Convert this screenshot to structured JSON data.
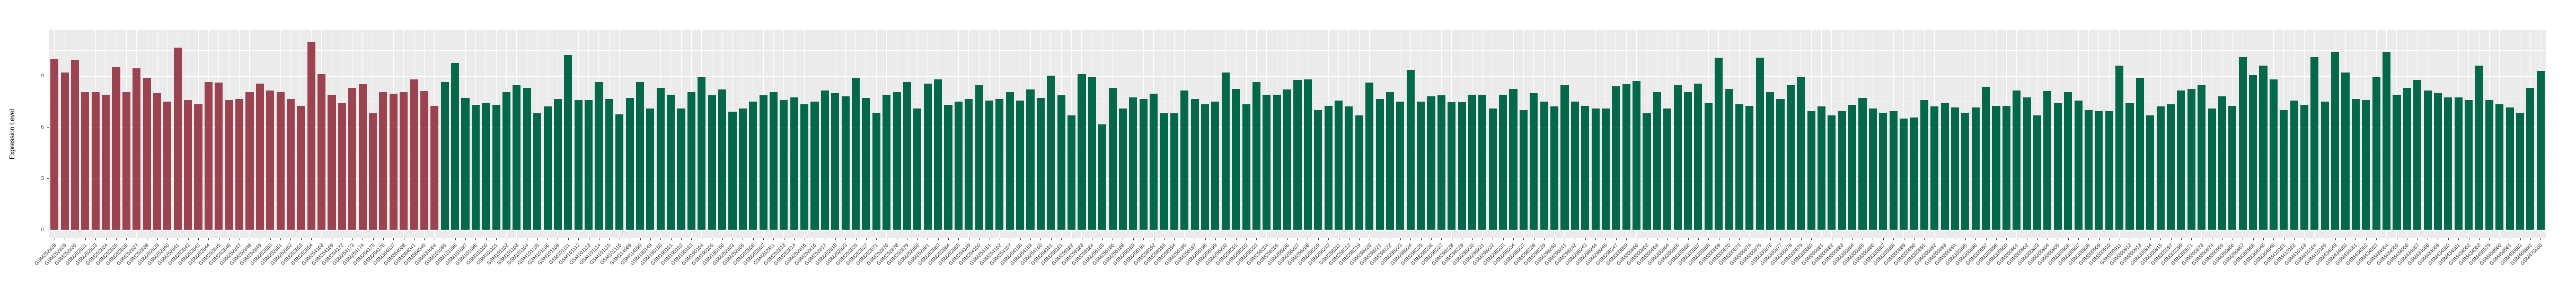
{
  "chart_data": {
    "type": "bar",
    "title": "",
    "xlabel": "",
    "ylabel": "Expression Level",
    "yticks": [
      0,
      3,
      6,
      9
    ],
    "ylim": [
      -0.49,
      11.7
    ],
    "grid": {
      "major": [
        0,
        3,
        6,
        9
      ],
      "minor": [
        1.5,
        4.5,
        7.5,
        10.5
      ],
      "vertical": "per-category"
    },
    "legend": "none",
    "panel_background": "#EBEBEB",
    "gridline_color": "#FFFFFF",
    "bar_groups": [
      {
        "name": "group-red",
        "color": "#9B4351",
        "start": 0,
        "end": 37
      },
      {
        "name": "group-green",
        "color": "#02684A",
        "start": 38,
        "end": 242
      }
    ],
    "categories": [
      "GSM252828",
      "GSM252829",
      "GSM252830",
      "GSM252831",
      "GSM252833",
      "GSM252834",
      "GSM252835",
      "GSM252836",
      "GSM252837",
      "GSM252838",
      "GSM252839",
      "GSM252840",
      "GSM252841",
      "GSM252842",
      "GSM252843",
      "GSM252844",
      "GSM252845",
      "GSM252846",
      "GSM252847",
      "GSM252848",
      "GSM252849",
      "GSM252850",
      "GSM252851",
      "GSM252852",
      "GSM252853",
      "GSM252854",
      "GSM254163",
      "GSM254169",
      "GSM254172",
      "GSM254173",
      "GSM254174",
      "GSM254175",
      "GSM254176",
      "GSM364037",
      "GSM364038",
      "GSM364041",
      "GSM364045",
      "GSM434064",
      "GSM101095",
      "GSM101096",
      "GSM101097",
      "GSM101098",
      "GSM101100",
      "GSM101101",
      "GSM101102",
      "GSM101103",
      "GSM101104",
      "GSM101105",
      "GSM101106",
      "GSM101109",
      "GSM101111",
      "GSM101112",
      "GSM101113",
      "GSM101114",
      "GSM101115",
      "GSM101116",
      "GSM114089",
      "GSM114090",
      "GSM190149",
      "GSM190150",
      "GSM190151",
      "GSM190152",
      "GSM190153",
      "GSM190154",
      "GSM190155",
      "GSM190156",
      "GSM252803",
      "GSM252805",
      "GSM252806",
      "GSM252807",
      "GSM252811",
      "GSM252813",
      "GSM252814",
      "GSM252815",
      "GSM252816",
      "GSM252817",
      "GSM252818",
      "GSM252823",
      "GSM252825",
      "GSM252827",
      "GSM252871",
      "GSM252876",
      "GSM252878",
      "GSM252879",
      "GSM252880",
      "GSM252881",
      "GSM252882",
      "GSM252884",
      "GSM252885",
      "GSM254149",
      "GSM254150",
      "GSM254151",
      "GSM254152",
      "GSM254157",
      "GSM254158",
      "GSM254159",
      "GSM254160",
      "GSM254161",
      "GSM256181",
      "GSM256182",
      "GSM256183",
      "GSM256184",
      "GSM256185",
      "GSM256186",
      "GSM256188",
      "GSM256189",
      "GSM256191",
      "GSM256192",
      "GSM256193",
      "GSM256194",
      "GSM256195",
      "GSM256197",
      "GSM256198",
      "GSM256199",
      "GSM256200",
      "GSM256201",
      "GSM256202",
      "GSM256203",
      "GSM256204",
      "GSM256205",
      "GSM256206",
      "GSM256207",
      "GSM256208",
      "GSM256209",
      "GSM256210",
      "GSM256211",
      "GSM256212",
      "GSM298219",
      "GSM298220",
      "GSM298221",
      "GSM298222",
      "GSM298223",
      "GSM298224",
      "GSM298225",
      "GSM298226",
      "GSM298227",
      "GSM298228",
      "GSM298229",
      "GSM298230",
      "GSM298231",
      "GSM298232",
      "GSM298233",
      "GSM298234",
      "GSM298237",
      "GSM298238",
      "GSM298239",
      "GSM298240",
      "GSM298241",
      "GSM298242",
      "GSM298243",
      "GSM298244",
      "GSM298245",
      "GSM298247",
      "GSM300859",
      "GSM300860",
      "GSM300862",
      "GSM300863",
      "GSM300864",
      "GSM300865",
      "GSM300866",
      "GSM300867",
      "GSM300868",
      "GSM300869",
      "GSM300870",
      "GSM300873",
      "GSM300874",
      "GSM300875",
      "GSM300876",
      "GSM300877",
      "GSM300878",
      "GSM300879",
      "GSM300880",
      "GSM300881",
      "GSM300882",
      "GSM300883",
      "GSM300884",
      "GSM300885",
      "GSM300886",
      "GSM300887",
      "GSM300888",
      "GSM300889",
      "GSM300890",
      "GSM300891",
      "GSM300892",
      "GSM300893",
      "GSM300894",
      "GSM300895",
      "GSM300896",
      "GSM300897",
      "GSM300898",
      "GSM300900",
      "GSM300901",
      "GSM300902",
      "GSM300903",
      "GSM300904",
      "GSM300905",
      "GSM300906",
      "GSM300907",
      "GSM300908",
      "GSM300909",
      "GSM300910",
      "GSM300911",
      "GSM300912",
      "GSM300913",
      "GSM300914",
      "GSM300915",
      "GSM302397",
      "GSM302399",
      "GSM350871",
      "GSM350873",
      "GSM350874",
      "GSM350955",
      "GSM350956",
      "GSM350957",
      "GSM350958",
      "GSM364046",
      "GSM364048",
      "GSM410161",
      "GSM410162",
      "GSM410163",
      "GSM410164",
      "GSM410165",
      "GSM434049",
      "GSM434050",
      "GSM434051",
      "GSM434052",
      "GSM434053",
      "GSM434054",
      "GSM434055",
      "GSM434056",
      "GSM434057",
      "GSM434058",
      "GSM434059",
      "GSM434060",
      "GSM434061",
      "GSM434062",
      "GSM434063",
      "GSM458579",
      "GSM458580",
      "GSM458581",
      "GSM458582",
      "GSM469991",
      "GSM470000"
    ],
    "values": [
      10.0,
      9.2,
      9.95,
      8.05,
      8.05,
      7.9,
      9.5,
      8.05,
      9.45,
      8.9,
      8.0,
      7.5,
      10.65,
      7.6,
      7.35,
      8.65,
      8.6,
      7.6,
      7.65,
      8.05,
      8.55,
      8.15,
      8.05,
      7.65,
      7.25,
      11.0,
      9.1,
      7.9,
      7.4,
      8.3,
      8.5,
      6.8,
      8.05,
      7.95,
      8.05,
      8.8,
      8.1,
      7.25,
      8.65,
      9.75,
      7.7,
      7.3,
      7.4,
      7.3,
      8.05,
      8.45,
      8.3,
      6.8,
      7.2,
      7.65,
      10.2,
      7.6,
      7.6,
      8.65,
      7.65,
      6.75,
      7.7,
      8.65,
      7.1,
      8.3,
      7.9,
      7.1,
      8.05,
      8.95,
      7.85,
      8.2,
      6.9,
      7.1,
      7.5,
      7.85,
      8.05,
      7.6,
      7.75,
      7.35,
      7.5,
      8.15,
      8.0,
      7.8,
      8.9,
      7.7,
      6.85,
      7.9,
      8.05,
      8.65,
      7.1,
      8.55,
      8.8,
      7.3,
      7.5,
      7.65,
      8.45,
      7.55,
      7.65,
      8.05,
      7.55,
      8.2,
      7.7,
      9.0,
      7.85,
      6.7,
      9.1,
      8.95,
      6.15,
      8.3,
      7.1,
      7.75,
      7.65,
      7.95,
      6.8,
      6.8,
      8.15,
      7.65,
      7.35,
      7.5,
      9.2,
      8.25,
      7.35,
      8.65,
      7.9,
      7.9,
      8.2,
      8.75,
      8.8,
      7.0,
      7.25,
      7.55,
      7.2,
      6.7,
      8.6,
      7.65,
      8.05,
      7.5,
      9.35,
      7.5,
      7.8,
      7.85,
      7.45,
      7.45,
      7.9,
      7.9,
      7.1,
      7.9,
      8.25,
      7.0,
      8.0,
      7.5,
      7.2,
      8.45,
      7.5,
      7.25,
      7.1,
      7.1,
      8.4,
      8.5,
      8.7,
      6.8,
      8.05,
      7.1,
      8.45,
      8.05,
      8.55,
      7.4,
      10.05,
      8.25,
      7.35,
      7.25,
      10.05,
      8.05,
      7.65,
      8.45,
      8.95,
      6.95,
      7.2,
      6.7,
      6.95,
      7.3,
      7.7,
      7.1,
      6.85,
      6.95,
      6.5,
      6.55,
      7.6,
      7.2,
      7.4,
      7.15,
      6.85,
      7.15,
      8.35,
      7.25,
      7.25,
      8.15,
      7.75,
      6.7,
      8.1,
      7.4,
      8.05,
      7.55,
      7.0,
      6.95,
      6.95,
      9.6,
      7.4,
      8.9,
      6.7,
      7.2,
      7.35,
      8.15,
      8.25,
      8.45,
      7.1,
      7.8,
      7.25,
      10.1,
      9.05,
      9.6,
      8.8,
      7.0,
      7.55,
      7.3,
      10.1,
      7.5,
      10.4,
      9.2,
      7.65,
      7.6,
      8.95,
      10.4,
      7.9,
      8.3,
      8.75,
      8.15,
      8.0,
      7.75,
      7.75,
      7.6,
      9.6,
      7.6,
      7.35,
      7.15,
      6.85,
      8.3,
      9.3
    ]
  }
}
